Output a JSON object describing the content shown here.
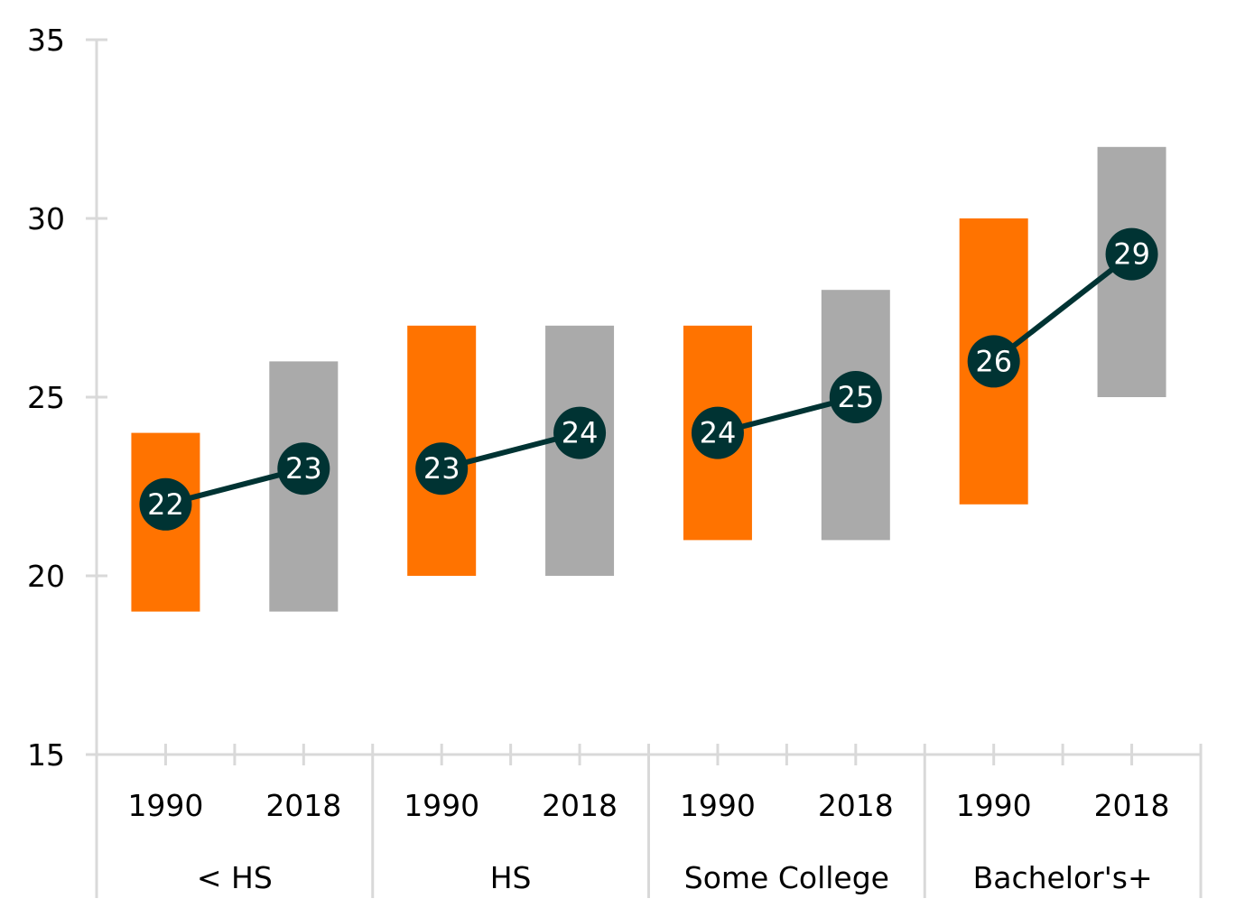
{
  "chart_data": {
    "type": "bar",
    "subtype": "floating-range-with-median-line",
    "title": "",
    "xlabel": "",
    "ylabel": "",
    "ylim": [
      15,
      35
    ],
    "yticks": [
      15,
      20,
      25,
      30,
      35
    ],
    "grid": false,
    "groups": [
      "< HS",
      "HS",
      "Some College",
      "Bachelor's+"
    ],
    "years": [
      "1990",
      "2018"
    ],
    "colors": {
      "1990": "#FF7300",
      "2018": "#AAAAAA",
      "median": "#003333",
      "axis": "#D9D9D9"
    },
    "series": [
      {
        "group": "< HS",
        "year": "1990",
        "low": 19,
        "high": 24,
        "median": 22
      },
      {
        "group": "< HS",
        "year": "2018",
        "low": 19,
        "high": 26,
        "median": 23
      },
      {
        "group": "HS",
        "year": "1990",
        "low": 20,
        "high": 27,
        "median": 23
      },
      {
        "group": "HS",
        "year": "2018",
        "low": 20,
        "high": 27,
        "median": 24
      },
      {
        "group": "Some College",
        "year": "1990",
        "low": 21,
        "high": 27,
        "median": 24
      },
      {
        "group": "Some College",
        "year": "2018",
        "low": 21,
        "high": 28,
        "median": 25
      },
      {
        "group": "Bachelor's+",
        "year": "1990",
        "low": 22,
        "high": 30,
        "median": 26
      },
      {
        "group": "Bachelor's+",
        "year": "2018",
        "low": 25,
        "high": 32,
        "median": 29
      }
    ]
  }
}
